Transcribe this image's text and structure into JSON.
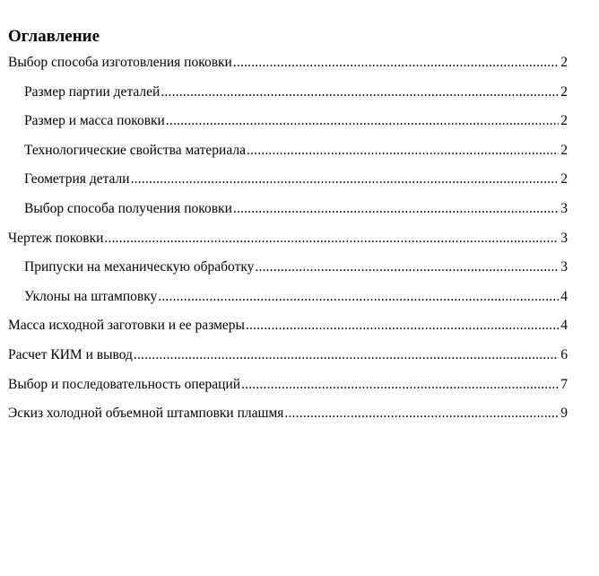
{
  "title": "Оглавление",
  "entries": [
    {
      "text": "Выбор способа изготовления поковки",
      "page": "2",
      "level": 1
    },
    {
      "text": "Размер партии деталей",
      "page": "2",
      "level": 2
    },
    {
      "text": "Размер и масса поковки",
      "page": "2",
      "level": 2
    },
    {
      "text": "Технологические свойства материала",
      "page": "2",
      "level": 2
    },
    {
      "text": "Геометрия детали",
      "page": "2",
      "level": 2
    },
    {
      "text": "Выбор способа получения поковки",
      "page": "3",
      "level": 2
    },
    {
      "text": "Чертеж поковки",
      "page": "3",
      "level": 1
    },
    {
      "text": "Припуски на механическую обработку",
      "page": "3",
      "level": 2
    },
    {
      "text": "Уклоны на штамповку",
      "page": "4",
      "level": 2
    },
    {
      "text": "Масса исходной заготовки и ее размеры",
      "page": "4",
      "level": 1
    },
    {
      "text": "Расчет КИМ и вывод",
      "page": "6",
      "level": 1
    },
    {
      "text": "Выбор и последовательность операций",
      "page": "7",
      "level": 1
    },
    {
      "text": "Эскиз холодной объемной штамповки плашмя",
      "page": "9",
      "level": 1
    }
  ]
}
